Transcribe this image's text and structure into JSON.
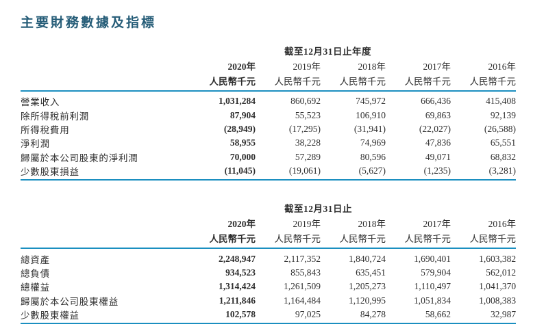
{
  "page": {
    "title": "主要財務數據及指標"
  },
  "colors": {
    "title": "#265d78",
    "rule": "#1b8fc0",
    "text": "#2e2e2e"
  },
  "tables": [
    {
      "period_header": "截至12月31日止年度",
      "columns": [
        "2020年",
        "2019年",
        "2018年",
        "2017年",
        "2016年"
      ],
      "unit": "人民幣千元",
      "rows": [
        {
          "label": "營業收入",
          "values": [
            "1,031,284",
            "860,692",
            "745,972",
            "666,436",
            "415,408"
          ]
        },
        {
          "label": "除所得稅前利潤",
          "values": [
            "87,904",
            "55,523",
            "106,910",
            "69,863",
            "92,139"
          ]
        },
        {
          "label": "所得稅費用",
          "values": [
            "(28,949)",
            "(17,295)",
            "(31,941)",
            "(22,027)",
            "(26,588)"
          ]
        },
        {
          "label": "淨利潤",
          "values": [
            "58,955",
            "38,228",
            "74,969",
            "47,836",
            "65,551"
          ]
        },
        {
          "label": "歸屬於本公司股東的淨利潤",
          "values": [
            "70,000",
            "57,289",
            "80,596",
            "49,071",
            "68,832"
          ]
        },
        {
          "label": "少數股東損益",
          "values": [
            "(11,045)",
            "(19,061)",
            "(5,627)",
            "(1,235)",
            "(3,281)"
          ]
        }
      ]
    },
    {
      "period_header": "截至12月31日止",
      "columns": [
        "2020年",
        "2019年",
        "2018年",
        "2017年",
        "2016年"
      ],
      "unit": "人民幣千元",
      "rows": [
        {
          "label": "總資產",
          "values": [
            "2,248,947",
            "2,117,352",
            "1,840,724",
            "1,690,401",
            "1,603,382"
          ]
        },
        {
          "label": "總負債",
          "values": [
            "934,523",
            "855,843",
            "635,451",
            "579,904",
            "562,012"
          ]
        },
        {
          "label": "總權益",
          "values": [
            "1,314,424",
            "1,261,509",
            "1,205,273",
            "1,110,497",
            "1,041,370"
          ]
        },
        {
          "label": "歸屬於本公司股東權益",
          "values": [
            "1,211,846",
            "1,164,484",
            "1,120,995",
            "1,051,834",
            "1,008,383"
          ]
        },
        {
          "label": "少數股東權益",
          "values": [
            "102,578",
            "97,025",
            "84,278",
            "58,662",
            "32,987"
          ]
        }
      ]
    }
  ]
}
